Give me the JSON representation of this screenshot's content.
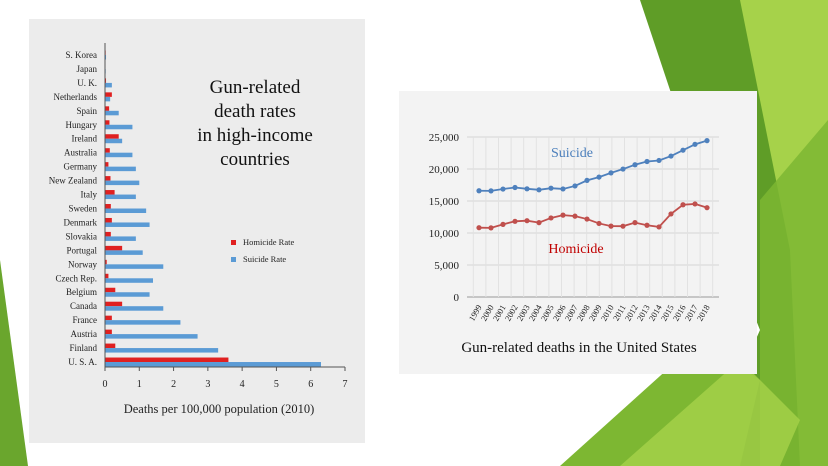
{
  "colors": {
    "green_dark": "#4e8a1e",
    "green_mid": "#7db732",
    "green_light": "#a6d24a",
    "homicide_bar": "#e02020",
    "suicide_bar": "#5b9bd5",
    "suicide_line": "#4f81bd",
    "homicide_line": "#c0504d",
    "suicide_label": "#4a7ebb",
    "homicide_label": "#c00000"
  },
  "chart_data": [
    {
      "type": "bar",
      "orientation": "horizontal",
      "title": "Gun-related death rates in high-income countries",
      "title_lines": [
        "Gun-related",
        "death rates",
        "in high-income",
        "countries"
      ],
      "xlabel": "Deaths per 100,000 population (2010)",
      "ylabel": "",
      "xlim": [
        0,
        7
      ],
      "x_ticks": [
        "0",
        "1",
        "2",
        "3",
        "4",
        "5",
        "6",
        "7"
      ],
      "categories": [
        "S. Korea",
        "Japan",
        "U. K.",
        "Netherlands",
        "Spain",
        "Hungary",
        "Ireland",
        "Australia",
        "Germany",
        "New Zealand",
        "Italy",
        "Sweden",
        "Denmark",
        "Slovakia",
        "Portugal",
        "Norway",
        "Czech Rep.",
        "Belgium",
        "Canada",
        "France",
        "Austria",
        "Finland",
        "U. S. A."
      ],
      "series": [
        {
          "name": "Homicide Rate",
          "values": [
            0.02,
            0.01,
            0.03,
            0.2,
            0.12,
            0.13,
            0.4,
            0.14,
            0.1,
            0.16,
            0.28,
            0.17,
            0.2,
            0.17,
            0.5,
            0.05,
            0.1,
            0.3,
            0.5,
            0.2,
            0.2,
            0.3,
            3.6
          ]
        },
        {
          "name": "Suicide Rate",
          "values": [
            0.03,
            0.02,
            0.2,
            0.15,
            0.4,
            0.8,
            0.5,
            0.8,
            0.9,
            1.0,
            0.9,
            1.2,
            1.3,
            0.9,
            1.1,
            1.7,
            1.4,
            1.3,
            1.7,
            2.2,
            2.7,
            3.3,
            6.3
          ]
        }
      ],
      "legend_position": "right"
    },
    {
      "type": "line",
      "title": "Gun-related deaths in the United States",
      "x": [
        "1999",
        "2000",
        "2001",
        "2002",
        "2003",
        "2004",
        "2005",
        "2006",
        "2007",
        "2008",
        "2009",
        "2010",
        "2011",
        "2012",
        "2013",
        "2014",
        "2015",
        "2016",
        "2017",
        "2018"
      ],
      "ylim": [
        0,
        25000
      ],
      "y_ticks": [
        "0",
        "5,000",
        "10,000",
        "15,000",
        "20,000",
        "25,000"
      ],
      "grid": true,
      "series": [
        {
          "name": "Suicide",
          "values": [
            16599,
            16586,
            16869,
            17108,
            16907,
            16750,
            17002,
            16883,
            17352,
            18223,
            18735,
            19392,
            19990,
            20666,
            21175,
            21334,
            22018,
            22938,
            23854,
            24432
          ]
        },
        {
          "name": "Homicide",
          "values": [
            10828,
            10801,
            11348,
            11829,
            11920,
            11624,
            12352,
            12791,
            12632,
            12179,
            11493,
            11078,
            11068,
            11622,
            11208,
            10945,
            12979,
            14415,
            14542,
            13958
          ]
        }
      ]
    }
  ]
}
